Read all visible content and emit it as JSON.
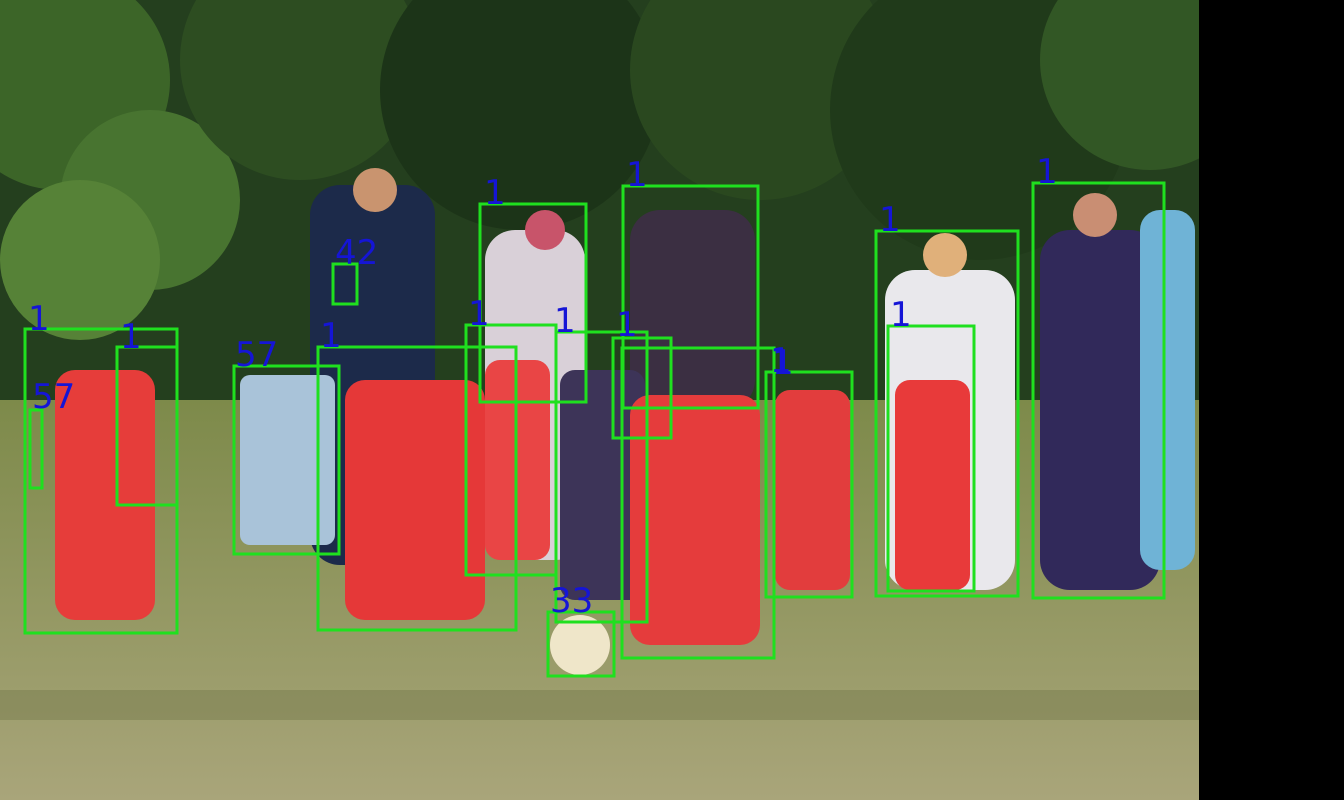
{
  "image": {
    "description_colors": {
      "sky_foliage_dark": "#1f3d1f",
      "grass": "#9c9a63",
      "box": "#1fe01f",
      "label": "#1515d6",
      "pad": "#000000"
    }
  },
  "detections": [
    {
      "label": "1"
    },
    {
      "label": "1"
    },
    {
      "label": "1"
    },
    {
      "label": "1"
    },
    {
      "label": "1"
    },
    {
      "label": "1"
    },
    {
      "label": "1"
    },
    {
      "label": "1"
    },
    {
      "label": "1"
    },
    {
      "label": "1"
    },
    {
      "label": "1"
    },
    {
      "label": "1"
    },
    {
      "label": "1"
    },
    {
      "label": "42"
    },
    {
      "label": "57"
    },
    {
      "label": "57"
    },
    {
      "label": "33"
    }
  ]
}
